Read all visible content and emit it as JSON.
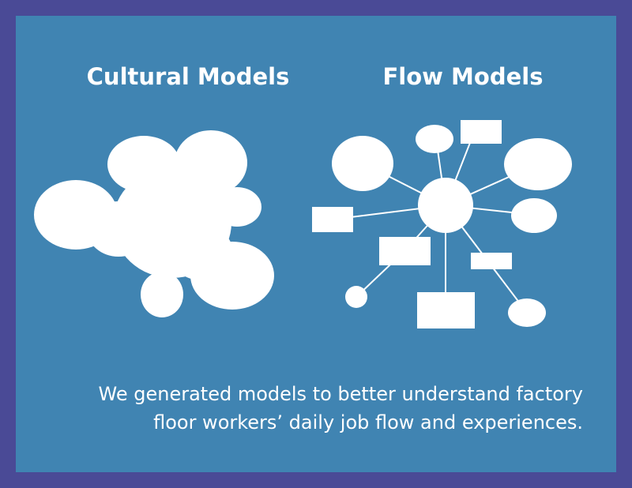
{
  "colors": {
    "frame": "#4A4A96",
    "background": "#4084B2",
    "shape": "#FFFFFF"
  },
  "titles": {
    "cultural": "Cultural Models",
    "flow": "Flow Models"
  },
  "caption": {
    "line1": "We generated models to better understand factory",
    "line2": "floor workers’ daily job flow and experiences."
  }
}
